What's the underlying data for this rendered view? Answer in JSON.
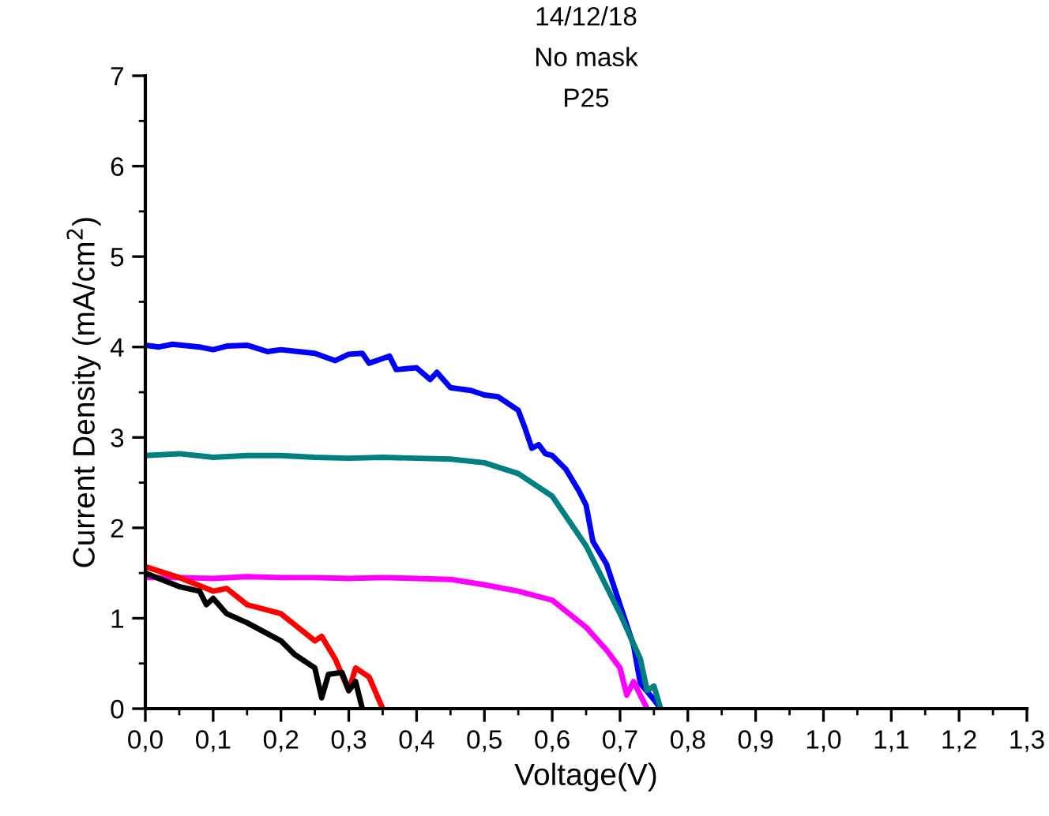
{
  "chart_data": {
    "type": "line",
    "title": "14/12/18\nNo mask\nP25",
    "xlabel": "Voltage(V)",
    "ylabel": "Current Density (mA/cm$^{2}$)",
    "xlim": [
      0,
      1.3
    ],
    "ylim": [
      0,
      7
    ],
    "xticks": [
      {
        "value": 0,
        "label": "0,0"
      },
      {
        "value": 0.1,
        "label": "0,1"
      },
      {
        "value": 0.2,
        "label": "0,2"
      },
      {
        "value": 0.3,
        "label": "0,3"
      },
      {
        "value": 0.4,
        "label": "0,4"
      },
      {
        "value": 0.5,
        "label": "0,5"
      },
      {
        "value": 0.6,
        "label": "0,6"
      },
      {
        "value": 0.7,
        "label": "0,7"
      },
      {
        "value": 0.8,
        "label": "0,8"
      },
      {
        "value": 0.9,
        "label": "0,9"
      },
      {
        "value": 1.0,
        "label": "1,0"
      },
      {
        "value": 1.1,
        "label": "1,1"
      },
      {
        "value": 1.2,
        "label": "1,2"
      },
      {
        "value": 1.3,
        "label": "1,3"
      }
    ],
    "yticks": [
      0,
      1,
      2,
      3,
      4,
      5,
      6,
      7
    ],
    "grid": false,
    "legend": false,
    "marker": "none",
    "line_style": "solid",
    "series": [
      {
        "color": "#0000ff",
        "x": [
          0.0,
          0.02,
          0.04,
          0.08,
          0.1,
          0.12,
          0.15,
          0.18,
          0.2,
          0.25,
          0.28,
          0.3,
          0.32,
          0.33,
          0.36,
          0.37,
          0.4,
          0.42,
          0.43,
          0.45,
          0.48,
          0.5,
          0.52,
          0.55,
          0.56,
          0.57,
          0.58,
          0.59,
          0.6,
          0.62,
          0.64,
          0.65,
          0.66,
          0.68,
          0.7,
          0.72,
          0.73,
          0.75,
          0.76
        ],
        "values": [
          4.02,
          4.0,
          4.03,
          4.0,
          3.97,
          4.01,
          4.02,
          3.95,
          3.97,
          3.93,
          3.85,
          3.92,
          3.93,
          3.82,
          3.9,
          3.75,
          3.77,
          3.64,
          3.72,
          3.55,
          3.52,
          3.47,
          3.45,
          3.3,
          3.1,
          2.88,
          2.92,
          2.82,
          2.8,
          2.65,
          2.4,
          2.25,
          1.85,
          1.6,
          1.15,
          0.7,
          0.28,
          0.1,
          0.0
        ]
      },
      {
        "color": "#008080",
        "x": [
          0.0,
          0.05,
          0.1,
          0.15,
          0.2,
          0.25,
          0.3,
          0.35,
          0.4,
          0.45,
          0.5,
          0.55,
          0.6,
          0.65,
          0.7,
          0.73,
          0.74,
          0.75,
          0.76
        ],
        "values": [
          2.8,
          2.82,
          2.78,
          2.8,
          2.8,
          2.78,
          2.77,
          2.78,
          2.77,
          2.76,
          2.72,
          2.6,
          2.35,
          1.8,
          1.05,
          0.55,
          0.2,
          0.25,
          0.0
        ]
      },
      {
        "color": "#ff00ff",
        "x": [
          0.0,
          0.05,
          0.1,
          0.15,
          0.2,
          0.25,
          0.3,
          0.35,
          0.4,
          0.45,
          0.5,
          0.55,
          0.6,
          0.65,
          0.68,
          0.7,
          0.71,
          0.72,
          0.74
        ],
        "values": [
          1.45,
          1.45,
          1.44,
          1.46,
          1.45,
          1.45,
          1.44,
          1.45,
          1.44,
          1.43,
          1.37,
          1.3,
          1.2,
          0.9,
          0.65,
          0.45,
          0.15,
          0.3,
          0.0
        ]
      },
      {
        "color": "#ff0000",
        "x": [
          0.0,
          0.05,
          0.1,
          0.12,
          0.15,
          0.2,
          0.25,
          0.26,
          0.28,
          0.3,
          0.31,
          0.33,
          0.35
        ],
        "values": [
          1.57,
          1.45,
          1.3,
          1.33,
          1.15,
          1.05,
          0.75,
          0.8,
          0.55,
          0.2,
          0.45,
          0.35,
          0.0
        ]
      },
      {
        "color": "#000000",
        "x": [
          0.0,
          0.05,
          0.08,
          0.09,
          0.1,
          0.12,
          0.15,
          0.2,
          0.22,
          0.25,
          0.26,
          0.27,
          0.29,
          0.3,
          0.31,
          0.32
        ],
        "values": [
          1.5,
          1.35,
          1.3,
          1.15,
          1.22,
          1.05,
          0.95,
          0.75,
          0.6,
          0.45,
          0.12,
          0.38,
          0.4,
          0.2,
          0.3,
          0.0
        ]
      }
    ]
  }
}
